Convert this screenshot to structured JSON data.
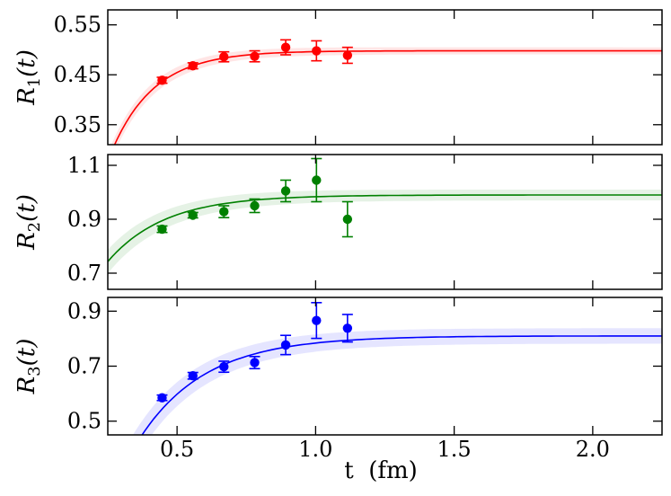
{
  "chart_data": {
    "type": "scatter",
    "xlabel": "t  (fm)",
    "xlim": [
      0.25,
      2.25
    ],
    "xticks": [
      0.5,
      1.0,
      1.5,
      2.0
    ],
    "xtick_labels": [
      "0.5",
      "1.0",
      "1.5",
      "2.0"
    ],
    "panels": [
      {
        "ylabel": "R1(t)",
        "ylabel_main": "R",
        "ylabel_sub": "1",
        "ylabel_tail": "(t)",
        "color": "#ff0000",
        "ylim": [
          0.31,
          0.58
        ],
        "yticks": [
          0.35,
          0.45,
          0.55
        ],
        "ytick_labels": [
          "0.35",
          "0.45",
          "0.55"
        ],
        "points": [
          {
            "x": 0.446,
            "y": 0.439,
            "err": 0.006
          },
          {
            "x": 0.557,
            "y": 0.468,
            "err": 0.006
          },
          {
            "x": 0.669,
            "y": 0.486,
            "err": 0.01
          },
          {
            "x": 0.78,
            "y": 0.487,
            "err": 0.011
          },
          {
            "x": 0.892,
            "y": 0.505,
            "err": 0.015
          },
          {
            "x": 1.003,
            "y": 0.498,
            "err": 0.02
          },
          {
            "x": 1.115,
            "y": 0.489,
            "err": 0.016
          }
        ],
        "fit": {
          "A": 0.498,
          "B": 1.12,
          "m": 6.5,
          "band": 0.007
        }
      },
      {
        "ylabel": "R2(t)",
        "ylabel_main": "R",
        "ylabel_sub": "2",
        "ylabel_tail": "(t)",
        "color": "#008000",
        "ylim": [
          0.64,
          1.14
        ],
        "yticks": [
          0.7,
          0.9,
          1.1
        ],
        "ytick_labels": [
          "0.7",
          "0.9",
          "1.1"
        ],
        "points": [
          {
            "x": 0.446,
            "y": 0.863,
            "err": 0.012
          },
          {
            "x": 0.557,
            "y": 0.915,
            "err": 0.01
          },
          {
            "x": 0.669,
            "y": 0.928,
            "err": 0.022
          },
          {
            "x": 0.78,
            "y": 0.95,
            "err": 0.025
          },
          {
            "x": 0.892,
            "y": 1.005,
            "err": 0.04
          },
          {
            "x": 1.003,
            "y": 1.045,
            "err": 0.08
          },
          {
            "x": 1.115,
            "y": 0.9,
            "err": 0.065
          }
        ],
        "fit": {
          "A": 0.99,
          "B": 0.83,
          "m": 4.85,
          "band": 0.02
        }
      },
      {
        "ylabel": "R3(t)",
        "ylabel_main": "R",
        "ylabel_sub": "3",
        "ylabel_tail": "(t)",
        "color": "#0000ff",
        "ylim": [
          0.45,
          0.95
        ],
        "yticks": [
          0.5,
          0.7,
          0.9
        ],
        "ytick_labels": [
          "0.5",
          "0.7",
          "0.9"
        ],
        "points": [
          {
            "x": 0.446,
            "y": 0.585,
            "err": 0.01
          },
          {
            "x": 0.557,
            "y": 0.665,
            "err": 0.012
          },
          {
            "x": 0.669,
            "y": 0.698,
            "err": 0.02
          },
          {
            "x": 0.78,
            "y": 0.713,
            "err": 0.022
          },
          {
            "x": 0.892,
            "y": 0.777,
            "err": 0.035
          },
          {
            "x": 1.003,
            "y": 0.866,
            "err": 0.065
          },
          {
            "x": 1.115,
            "y": 0.838,
            "err": 0.05
          }
        ],
        "fit": {
          "A": 0.81,
          "B": 1.73,
          "m": 4.2,
          "band": 0.028
        }
      }
    ]
  }
}
